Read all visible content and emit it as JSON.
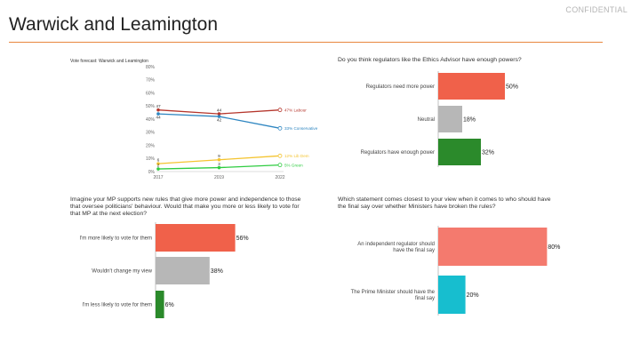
{
  "header": {
    "title": "Warwick and Leamington",
    "confidential": "CONFIDENTIAL"
  },
  "colors": {
    "orange_rule": "#e8883f",
    "labour": "#b5362c",
    "conservative": "#2e86c1",
    "libdem": "#f4c430",
    "green": "#2ecc40",
    "bar_red": "#f0614a",
    "bar_grey": "#b7b7b7",
    "bar_green": "#2b8a2b",
    "bar_salmon": "#f47a6e",
    "bar_teal": "#17becf"
  },
  "chart_data": [
    {
      "type": "line",
      "title": "Vote forecast: Warwick and Leamington",
      "x": [
        "2017",
        "2019",
        "2022"
      ],
      "ylim": [
        0,
        80
      ],
      "yticks": [
        "0%",
        "10%",
        "20%",
        "30%",
        "40%",
        "50%",
        "60%",
        "70%",
        "80%"
      ],
      "series": [
        {
          "name": "Labour",
          "values": [
            47,
            44,
            47
          ],
          "labels": [
            "47",
            "44",
            ""
          ],
          "end_label": "47% Labour",
          "color": "#b5362c"
        },
        {
          "name": "Conservative",
          "values": [
            44,
            42,
            33
          ],
          "labels": [
            "44",
            "42",
            ""
          ],
          "end_label": "33% Conservative",
          "color": "#2e86c1"
        },
        {
          "name": "Lib Dem",
          "values": [
            6,
            9,
            12
          ],
          "labels": [
            "6",
            "9",
            ""
          ],
          "end_label": "12% Lib Dem",
          "color": "#f4c430"
        },
        {
          "name": "Green",
          "values": [
            2,
            3,
            5
          ],
          "labels": [
            "2",
            "3",
            ""
          ],
          "end_label": "5% Green",
          "color": "#2ecc40"
        }
      ]
    },
    {
      "type": "bar",
      "title": "Do you think regulators like the Ethics Advisor have enough powers?",
      "categories": [
        "Regulators need more power",
        "Neutral",
        "Regulators have enough power"
      ],
      "values": [
        50,
        18,
        32
      ],
      "value_labels": [
        "50%",
        "18%",
        "32%"
      ],
      "colors": [
        "#f0614a",
        "#b7b7b7",
        "#2b8a2b"
      ],
      "xlim": [
        0,
        100
      ]
    },
    {
      "type": "bar",
      "title": "Imagine your MP supports new rules that give more power and independence to those that oversee politicians' behaviour. Would that make you more or less likely to vote for that MP at the next election?",
      "categories": [
        "I'm more likely to vote for them",
        "Wouldn't change my view",
        "I'm less likely to vote for them"
      ],
      "values": [
        56,
        38,
        6
      ],
      "value_labels": [
        "56%",
        "38%",
        "6%"
      ],
      "colors": [
        "#f0614a",
        "#b7b7b7",
        "#2b8a2b"
      ],
      "xlim": [
        0,
        100
      ]
    },
    {
      "type": "bar",
      "title": "Which statement comes closest to your view when it comes to who should have the final say over whether Ministers have broken the rules?",
      "categories": [
        "An independent regulator should have the final say",
        "The Prime Minister should have the final say"
      ],
      "values": [
        80,
        20
      ],
      "value_labels": [
        "80%",
        "20%"
      ],
      "colors": [
        "#f47a6e",
        "#17becf"
      ],
      "xlim": [
        0,
        100
      ]
    }
  ]
}
